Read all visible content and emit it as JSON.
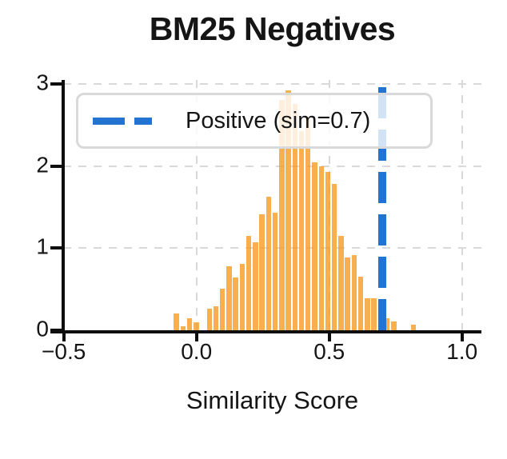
{
  "title": "BM25 Negatives",
  "axes": {
    "xlabel": "Similarity Score",
    "x_tick_labels": [
      "−0.5",
      "0.0",
      "0.5",
      "1.0"
    ],
    "x_tick_values": [
      -0.5,
      0.0,
      0.5,
      1.0
    ],
    "y_tick_labels": [
      "0",
      "1",
      "2",
      "3"
    ],
    "y_tick_values": [
      0,
      1,
      2,
      3
    ]
  },
  "legend": {
    "label": "Positive (sim=0.7)",
    "position": "upper left",
    "line_style": "dashed"
  },
  "colors": {
    "bar_fill": "#f8991d",
    "bar_alpha": 0.78,
    "threshold_line": "#2274d0",
    "gridline": "#d9d9d9",
    "axis": "#0d0d0d",
    "text": "#151515",
    "background": "#ffffff"
  },
  "chart_data": {
    "type": "bar",
    "subtype": "histogram-density",
    "title": "BM25 Negatives",
    "xlabel": "Similarity Score",
    "ylabel": "",
    "xlim": [
      -0.502,
      1.073
    ],
    "ylim": [
      0,
      3.05
    ],
    "grid": true,
    "bin_start": -0.088,
    "bin_width": 0.0248,
    "bin_heights": [
      0.2,
      0.05,
      0.15,
      0.1,
      0.0,
      0.26,
      0.29,
      0.51,
      0.78,
      0.64,
      0.81,
      1.15,
      1.07,
      1.41,
      1.63,
      1.43,
      2.8,
      2.92,
      2.76,
      2.42,
      2.6,
      2.04,
      2.0,
      1.93,
      1.78,
      1.15,
      0.89,
      0.92,
      0.65,
      0.39,
      0.39,
      0.3,
      0.15,
      0.11,
      0.0,
      0.0,
      0.07
    ],
    "vline": {
      "x": 0.7,
      "label": "Positive (sim=0.7)",
      "style": "dashed",
      "color": "#2274d0"
    },
    "legend_position": "upper left"
  }
}
